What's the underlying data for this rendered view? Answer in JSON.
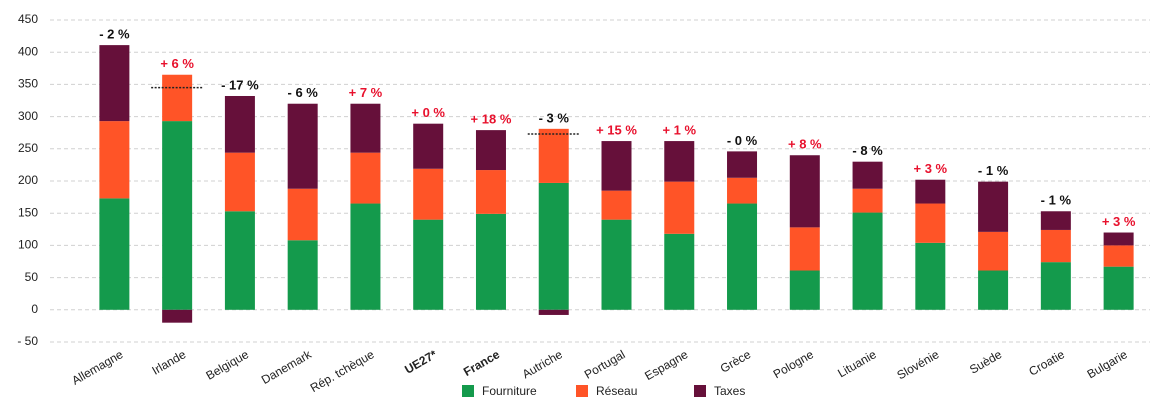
{
  "chart_data": {
    "type": "stacked_bar",
    "categories": [
      "Allemagne",
      "Irlande",
      "Belgique",
      "Danemark",
      "Rép. tchèque",
      "UE27*",
      "France",
      "Autriche",
      "Portugal",
      "Espagne",
      "Grèce",
      "Pologne",
      "Lituanie",
      "Slovénie",
      "Suède",
      "Croatie",
      "Bulgarie"
    ],
    "category_bold": [
      false,
      false,
      false,
      false,
      false,
      true,
      true,
      false,
      false,
      false,
      false,
      false,
      false,
      false,
      false,
      false,
      false
    ],
    "series": [
      {
        "name": "Fourniture",
        "color": "#149a4c",
        "values": [
          173,
          293,
          153,
          108,
          165,
          140,
          149,
          197,
          140,
          118,
          165,
          61,
          151,
          104,
          61,
          74,
          67
        ]
      },
      {
        "name": "Réseau",
        "color": "#ff5427",
        "values": [
          120,
          72,
          91,
          80,
          79,
          79,
          68,
          84,
          45,
          81,
          40,
          67,
          37,
          61,
          60,
          50,
          33
        ]
      },
      {
        "name": "Taxes",
        "color": "#66103a",
        "values": [
          118,
          -20,
          88,
          132,
          76,
          70,
          62,
          -8,
          77,
          63,
          41,
          112,
          42,
          37,
          78,
          29,
          20
        ]
      }
    ],
    "annotations": [
      "- 2 %",
      "+ 6 %",
      "- 17 %",
      "- 6 %",
      "+ 7 %",
      "+ 0 %",
      "+ 18 %",
      "- 3 %",
      "+ 15 %",
      "+ 1 %",
      "- 0 %",
      "+ 8 %",
      "- 8 %",
      "+ 3 %",
      "- 1 %",
      "- 1 %",
      "+ 3 %"
    ],
    "annotation_colors": [
      "#111",
      "#e8112d",
      "#111",
      "#111",
      "#e8112d",
      "#e8112d",
      "#e8112d",
      "#111",
      "#e8112d",
      "#e8112d",
      "#111",
      "#e8112d",
      "#111",
      "#e8112d",
      "#111",
      "#111",
      "#e8112d"
    ],
    "ylim": [
      -50,
      450
    ],
    "yticks": [
      {
        "value": -50,
        "label": "- 50"
      },
      0,
      50,
      100,
      150,
      200,
      250,
      300,
      350,
      400,
      450
    ],
    "grid": true
  }
}
